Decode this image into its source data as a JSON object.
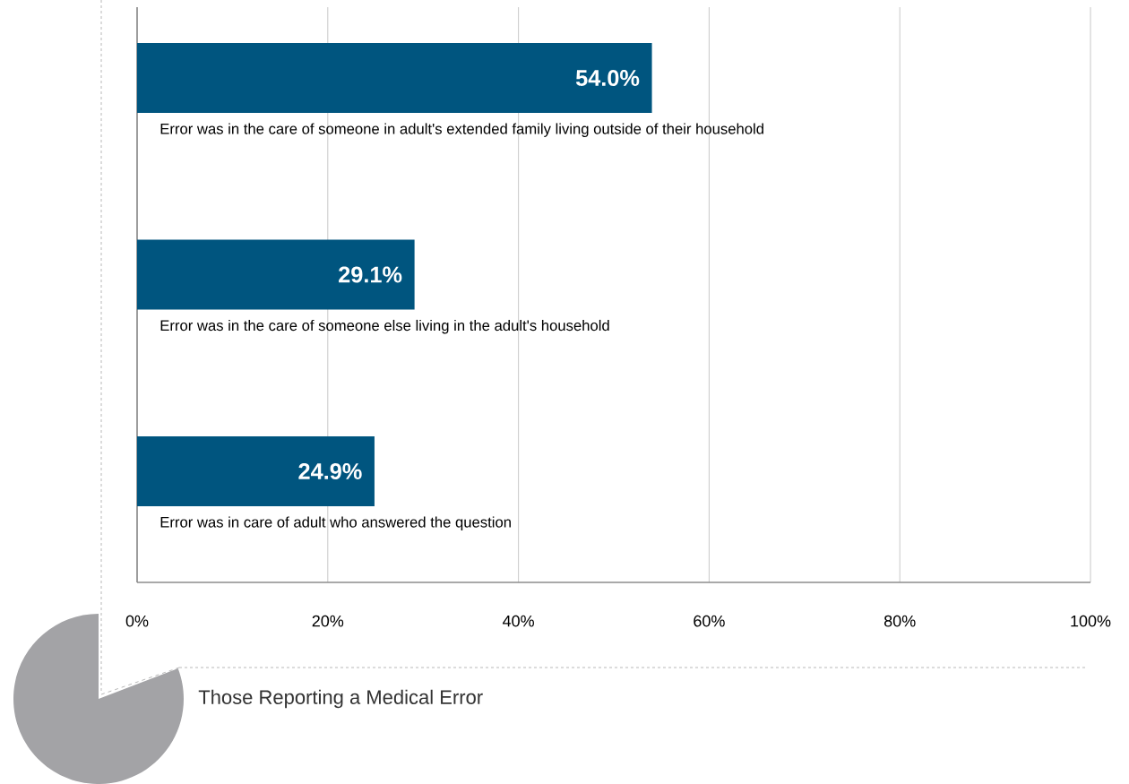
{
  "chart_data": {
    "type": "bar",
    "orientation": "horizontal",
    "title": "Those Reporting a Medical Error",
    "categories": [
      "Error was in the care of someone in adult's extended family living outside of their household",
      "Error was in the care of someone else living in the adult's household",
      "Error was in care of adult who answered the question"
    ],
    "values": [
      54.0,
      29.1,
      24.9
    ],
    "value_labels": [
      "54.0%",
      "29.1%",
      "24.9%"
    ],
    "color": "#00557f",
    "xlim": [
      0,
      100
    ],
    "xticks": [
      {
        "value": 0,
        "label": "0%"
      },
      {
        "value": 20,
        "label": "20%"
      },
      {
        "value": 40,
        "label": "40%"
      },
      {
        "value": 60,
        "label": "60%"
      },
      {
        "value": 80,
        "label": "80%"
      },
      {
        "value": 100,
        "label": "100%"
      }
    ],
    "grid": "x"
  }
}
